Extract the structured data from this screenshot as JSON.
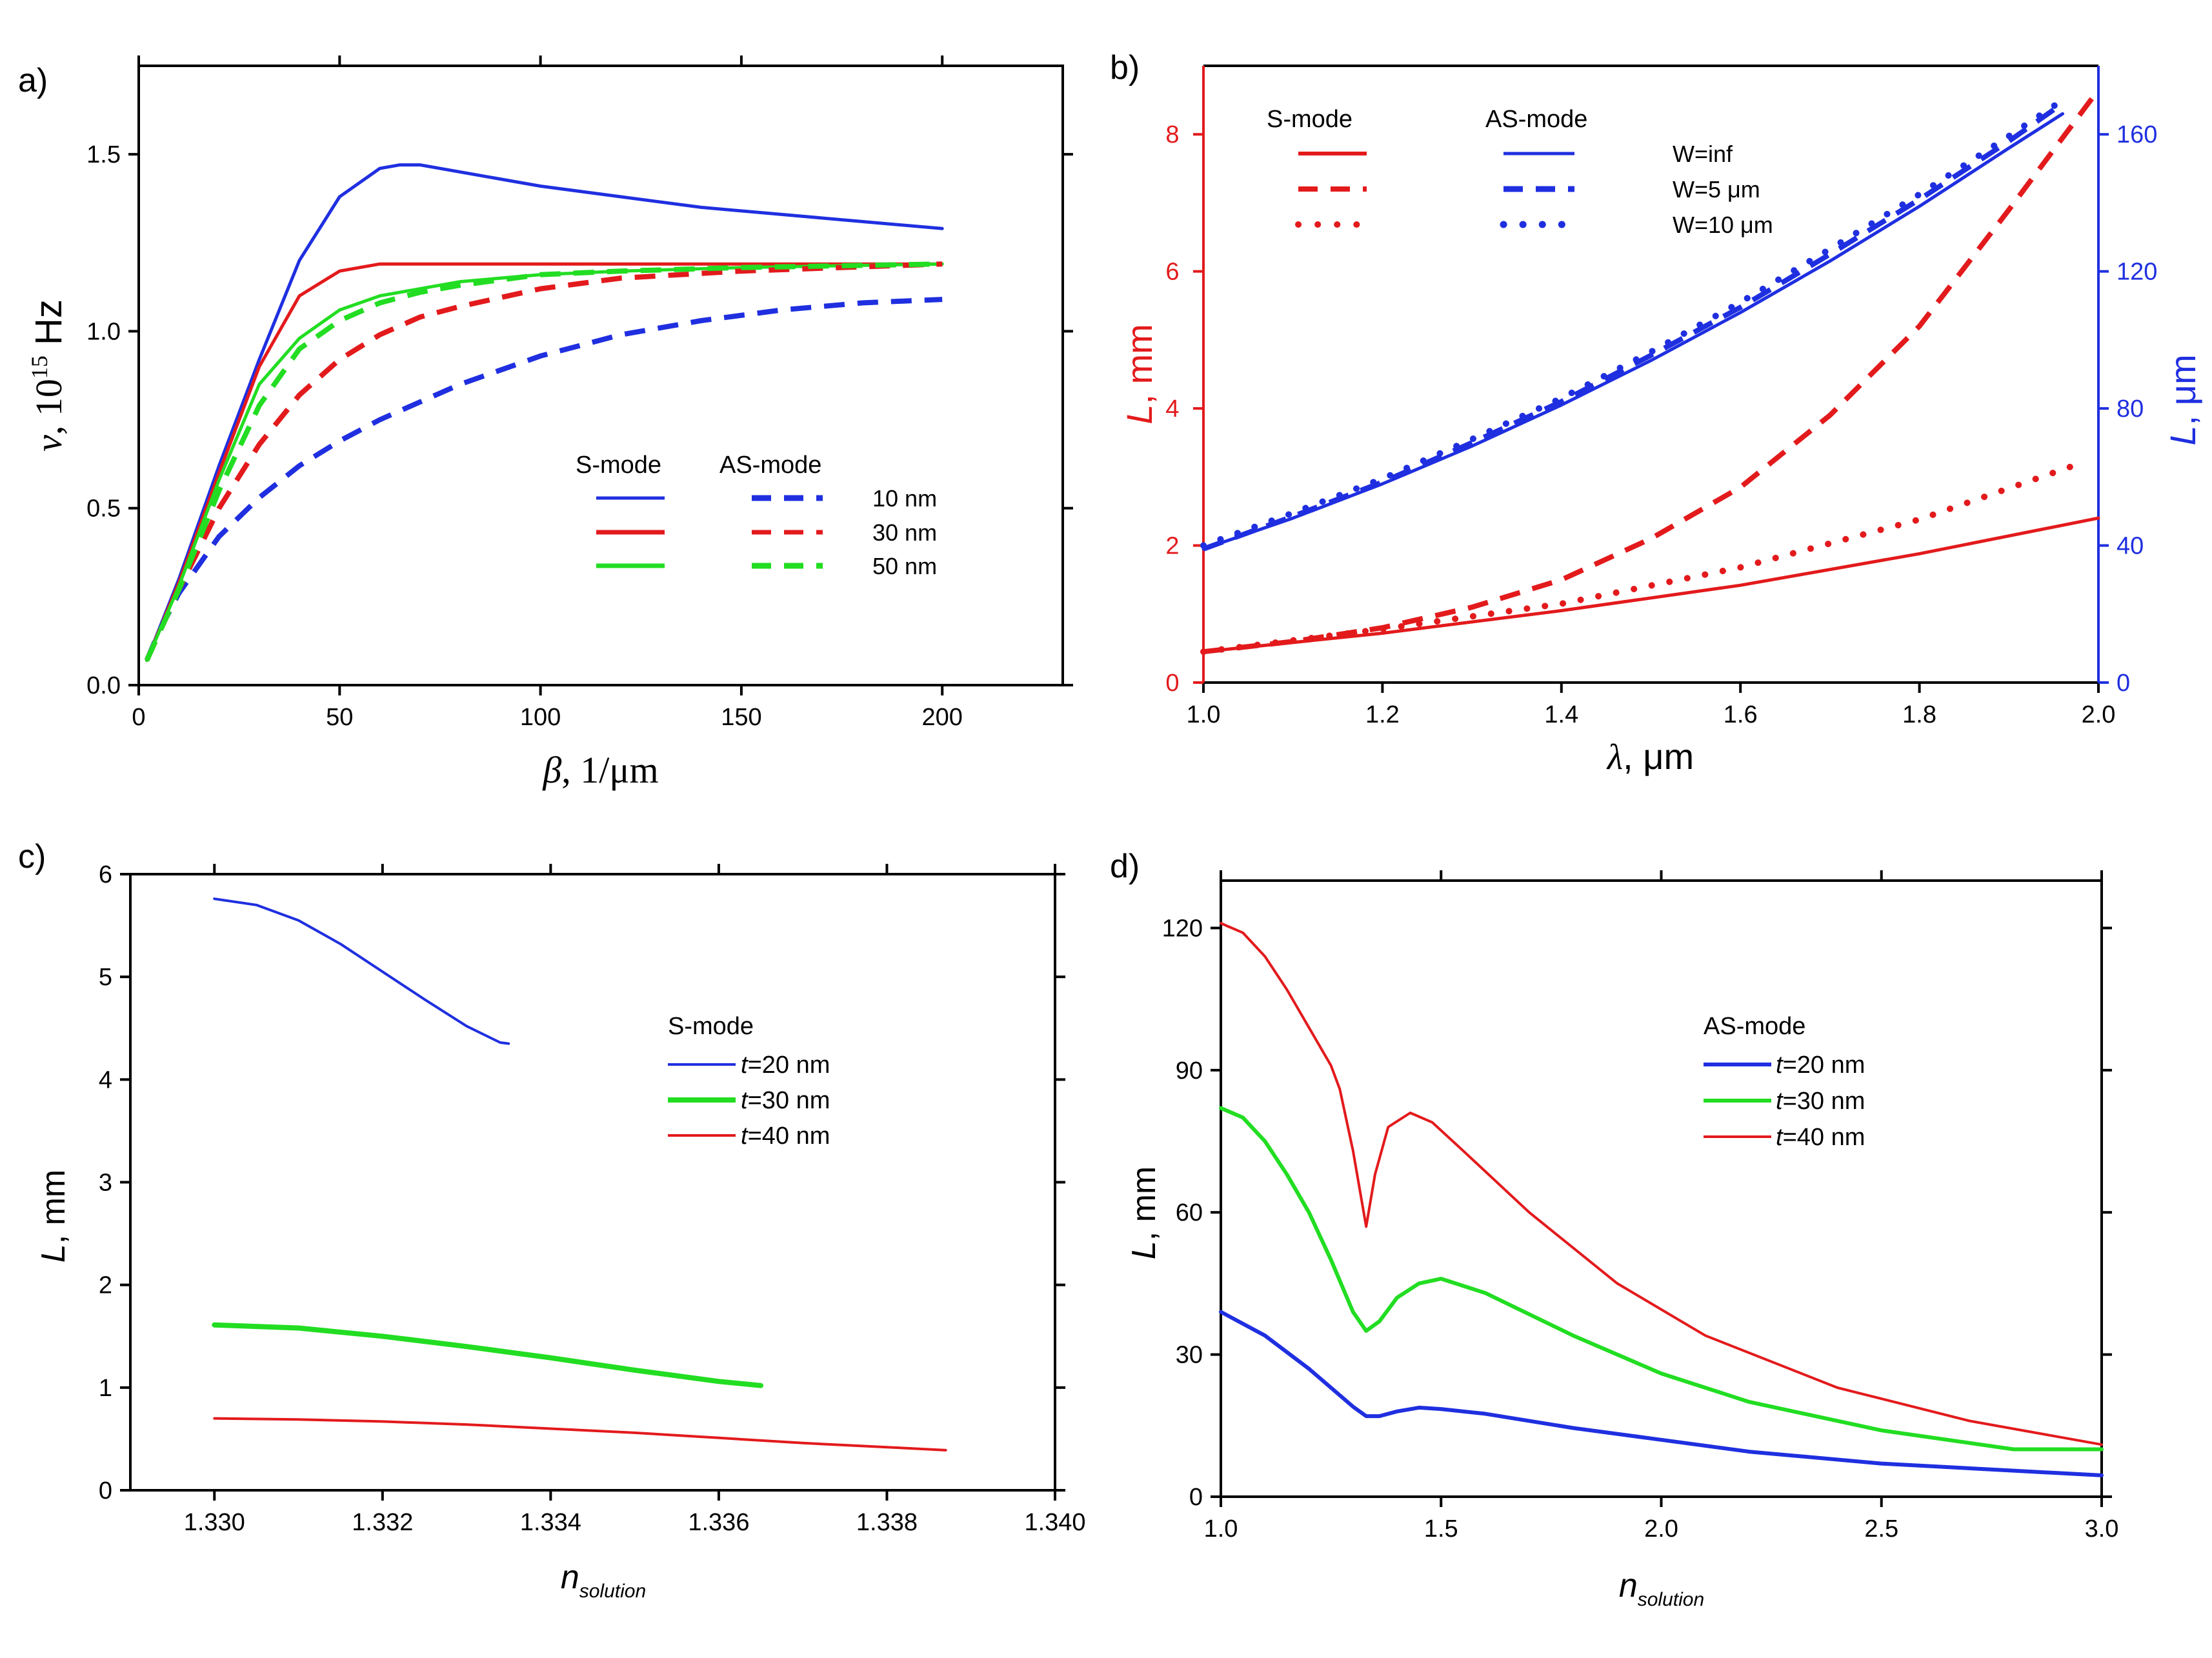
{
  "panels": {
    "a": {
      "label": "a)",
      "chart_data": {
        "type": "line",
        "xlabel_sym": "β",
        "xlabel_unit": ", 1/μm",
        "ylabel_sym": "ν",
        "ylabel_pre": ", 10",
        "ylabel_sup": "15",
        "ylabel_post": " Hz",
        "xlim": [
          0,
          230
        ],
        "ylim": [
          0,
          1.75
        ],
        "xticks": [
          0,
          50,
          100,
          150,
          200
        ],
        "xtick_labels": [
          "0",
          "50",
          "100",
          "150",
          "200"
        ],
        "yticks": [
          0,
          0.5,
          1.0,
          1.5
        ],
        "ytick_labels": [
          "0.0",
          "0.5",
          "1.0",
          "1.5"
        ],
        "series": [
          {
            "name": "S-mode 10 nm",
            "color": "#1f2fe0",
            "style": "solid",
            "x": [
              2,
              10,
              20,
              30,
              40,
              50,
              60,
              65,
              70,
              80,
              100,
              120,
              140,
              160,
              180,
              200
            ],
            "y": [
              0.07,
              0.3,
              0.62,
              0.92,
              1.2,
              1.38,
              1.46,
              1.47,
              1.47,
              1.45,
              1.41,
              1.38,
              1.35,
              1.33,
              1.31,
              1.29
            ]
          },
          {
            "name": "S-mode 30 nm",
            "color": "#e31a1c",
            "style": "solid",
            "x": [
              2,
              10,
              20,
              30,
              40,
              50,
              60,
              70,
              80,
              100,
              150,
              200
            ],
            "y": [
              0.07,
              0.29,
              0.6,
              0.9,
              1.1,
              1.17,
              1.19,
              1.19,
              1.19,
              1.19,
              1.19,
              1.19
            ]
          },
          {
            "name": "S-mode 50 nm",
            "color": "#22dd22",
            "style": "solid",
            "x": [
              2,
              10,
              20,
              30,
              40,
              50,
              60,
              70,
              80,
              100,
              120,
              150,
              200
            ],
            "y": [
              0.07,
              0.28,
              0.58,
              0.85,
              0.98,
              1.06,
              1.1,
              1.12,
              1.14,
              1.16,
              1.17,
              1.18,
              1.19
            ]
          },
          {
            "name": "AS-mode 10 nm",
            "color": "#1f2fe0",
            "style": "dash",
            "x": [
              2,
              5,
              10,
              20,
              30,
              40,
              50,
              60,
              70,
              80,
              100,
              120,
              140,
              160,
              180,
              200
            ],
            "y": [
              0.07,
              0.15,
              0.26,
              0.42,
              0.53,
              0.62,
              0.69,
              0.75,
              0.8,
              0.85,
              0.93,
              0.99,
              1.03,
              1.06,
              1.08,
              1.09
            ]
          },
          {
            "name": "AS-mode 30 nm",
            "color": "#e31a1c",
            "style": "dash",
            "x": [
              2,
              10,
              20,
              30,
              40,
              50,
              60,
              70,
              80,
              100,
              120,
              150,
              200
            ],
            "y": [
              0.07,
              0.27,
              0.5,
              0.68,
              0.82,
              0.92,
              0.99,
              1.04,
              1.07,
              1.12,
              1.15,
              1.17,
              1.19
            ]
          },
          {
            "name": "AS-mode 50 nm",
            "color": "#22dd22",
            "style": "dash",
            "x": [
              2,
              10,
              20,
              30,
              40,
              50,
              60,
              70,
              80,
              100,
              120,
              150,
              200
            ],
            "y": [
              0.07,
              0.27,
              0.55,
              0.79,
              0.95,
              1.03,
              1.08,
              1.11,
              1.13,
              1.16,
              1.17,
              1.18,
              1.19
            ]
          }
        ],
        "legend": {
          "position": "center-right",
          "col1_title": "S-mode",
          "col2_title": "AS-mode",
          "rows": [
            {
              "label": "10 nm",
              "color": "#1f2fe0"
            },
            {
              "label": "30 nm",
              "color": "#e31a1c"
            },
            {
              "label": "50 nm",
              "color": "#22dd22"
            }
          ]
        }
      }
    },
    "b": {
      "label": "b)",
      "chart_data": {
        "type": "line",
        "xlabel_sym": "λ",
        "xlabel_unit": ", μm",
        "ylabel_left_sym": "L",
        "ylabel_left_unit": ", mm",
        "ylabel_right_sym": "L",
        "ylabel_right_unit": ", μm",
        "xlim": [
          1.0,
          2.0
        ],
        "ylim_left": [
          0,
          9
        ],
        "ylim_right": [
          0,
          180
        ],
        "xticks": [
          1.0,
          1.2,
          1.4,
          1.6,
          1.8,
          2.0
        ],
        "xtick_labels": [
          "1.0",
          "1.2",
          "1.4",
          "1.6",
          "1.8",
          "2.0"
        ],
        "yticks_left": [
          0,
          2,
          4,
          6,
          8
        ],
        "ytick_labels_left": [
          "0",
          "2",
          "4",
          "6",
          "8"
        ],
        "yticks_right": [
          0,
          40,
          80,
          120,
          160
        ],
        "ytick_labels_right": [
          "0",
          "40",
          "80",
          "120",
          "160"
        ],
        "left_color": "#e31a1c",
        "right_color": "#1f2fe0",
        "series": [
          {
            "name": "S-mode W=inf",
            "axis": "left",
            "color": "#e31a1c",
            "style": "solid",
            "x": [
              1.0,
              1.2,
              1.4,
              1.6,
              1.8,
              2.0
            ],
            "y": [
              0.45,
              0.72,
              1.05,
              1.42,
              1.88,
              2.4
            ]
          },
          {
            "name": "S-mode W=5 μm",
            "axis": "left",
            "color": "#e31a1c",
            "style": "dash",
            "x": [
              1.0,
              1.1,
              1.2,
              1.3,
              1.4,
              1.5,
              1.6,
              1.7,
              1.8,
              1.9,
              2.0
            ],
            "y": [
              0.45,
              0.6,
              0.8,
              1.1,
              1.5,
              2.1,
              2.85,
              3.9,
              5.2,
              6.9,
              8.65
            ]
          },
          {
            "name": "S-mode W=10 μm",
            "axis": "left",
            "color": "#e31a1c",
            "style": "dot",
            "x": [
              1.0,
              1.2,
              1.4,
              1.6,
              1.8,
              1.98
            ],
            "y": [
              0.45,
              0.78,
              1.15,
              1.68,
              2.38,
              3.2
            ]
          },
          {
            "name": "AS-mode W=inf",
            "axis": "right",
            "color": "#1f2fe0",
            "style": "solid",
            "x": [
              1.0,
              1.1,
              1.2,
              1.3,
              1.4,
              1.5,
              1.6,
              1.7,
              1.8,
              1.9,
              1.96
            ],
            "y": [
              39,
              48,
              58,
              69,
              81,
              94,
              108,
              123,
              139,
              156,
              166
            ]
          },
          {
            "name": "AS-mode W=5 μm",
            "axis": "right",
            "color": "#1f2fe0",
            "style": "dash",
            "x": [
              1.0,
              1.1,
              1.2,
              1.3,
              1.4,
              1.5,
              1.6,
              1.7,
              1.8,
              1.9,
              1.96
            ],
            "y": [
              39,
              48.5,
              58.5,
              70,
              82,
              95.5,
              109.5,
              125,
              141,
              158,
              169
            ]
          },
          {
            "name": "AS-mode W=10 μm",
            "axis": "right",
            "color": "#1f2fe0",
            "style": "dot",
            "x": [
              1.0,
              1.1,
              1.2,
              1.3,
              1.4,
              1.5,
              1.6,
              1.7,
              1.8,
              1.9,
              1.96
            ],
            "y": [
              40,
              49.5,
              59.5,
              71,
              83,
              96.5,
              111,
              126.5,
              142.5,
              159.5,
              170
            ]
          }
        ],
        "legend": {
          "position": "top-left",
          "col1_title": "S-mode",
          "col2_title": "AS-mode",
          "rows": [
            {
              "label": "W=inf",
              "style": "solid"
            },
            {
              "label": "W=5 μm",
              "style": "dash"
            },
            {
              "label": "W=10 μm",
              "style": "dot"
            }
          ]
        }
      }
    },
    "c": {
      "label": "c)",
      "chart_data": {
        "type": "line",
        "xlabel_sym": "n",
        "xlabel_sub": "solution",
        "ylabel_sym": "L",
        "ylabel_unit": ", mm",
        "xlim": [
          1.329,
          1.34
        ],
        "ylim": [
          0,
          6
        ],
        "xticks": [
          1.33,
          1.332,
          1.334,
          1.336,
          1.338,
          1.34
        ],
        "xtick_labels": [
          "1.330",
          "1.332",
          "1.334",
          "1.336",
          "1.338",
          "1.340"
        ],
        "yticks": [
          0,
          1,
          2,
          3,
          4,
          5,
          6
        ],
        "ytick_labels": [
          "0",
          "1",
          "2",
          "3",
          "4",
          "5",
          "6"
        ],
        "series": [
          {
            "name": "t=20 nm",
            "color": "#1f2fe0",
            "width": "thin",
            "x": [
              1.33,
              1.3305,
              1.331,
              1.3315,
              1.332,
              1.3325,
              1.333,
              1.3334,
              1.3335
            ],
            "y": [
              5.76,
              5.7,
              5.55,
              5.32,
              5.05,
              4.78,
              4.52,
              4.36,
              4.35
            ]
          },
          {
            "name": "t=30 nm",
            "color": "#22dd22",
            "width": "thick",
            "x": [
              1.33,
              1.331,
              1.332,
              1.333,
              1.334,
              1.335,
              1.336,
              1.3365
            ],
            "y": [
              1.61,
              1.58,
              1.5,
              1.4,
              1.29,
              1.17,
              1.06,
              1.02
            ]
          },
          {
            "name": "t=40 nm",
            "color": "#e31a1c",
            "width": "thin",
            "x": [
              1.33,
              1.331,
              1.332,
              1.333,
              1.334,
              1.335,
              1.336,
              1.337,
              1.338,
              1.3387
            ],
            "y": [
              0.7,
              0.69,
              0.67,
              0.64,
              0.6,
              0.56,
              0.51,
              0.46,
              0.42,
              0.39
            ]
          }
        ],
        "legend": {
          "position": "center-right",
          "title": "S-mode",
          "rows": [
            {
              "italic": "t",
              "label": "=20 nm",
              "color": "#1f2fe0"
            },
            {
              "italic": "t",
              "label": "=30 nm",
              "color": "#22dd22"
            },
            {
              "italic": "t",
              "label": "=40 nm",
              "color": "#e31a1c"
            }
          ]
        }
      }
    },
    "d": {
      "label": "d)",
      "chart_data": {
        "type": "line",
        "xlabel_sym": "n",
        "xlabel_sub": "solution",
        "ylabel_sym": "L",
        "ylabel_unit": ", mm",
        "xlim": [
          1.0,
          3.0
        ],
        "ylim": [
          0,
          130
        ],
        "xticks": [
          1.0,
          1.5,
          2.0,
          2.5,
          3.0
        ],
        "xtick_labels": [
          "1.0",
          "1.5",
          "2.0",
          "2.5",
          "3.0"
        ],
        "yticks": [
          0,
          30,
          60,
          90,
          120
        ],
        "ytick_labels": [
          "0",
          "30",
          "60",
          "90",
          "120"
        ],
        "series": [
          {
            "name": "t=20 nm",
            "color": "#1f2fe0",
            "width": "thick",
            "x": [
              1.0,
              1.1,
              1.2,
              1.3,
              1.33,
              1.36,
              1.4,
              1.45,
              1.5,
              1.6,
              1.8,
              2.0,
              2.2,
              2.5,
              2.8,
              3.0
            ],
            "y": [
              39,
              34,
              27,
              19,
              17,
              17,
              18,
              18.8,
              18.5,
              17.5,
              14.5,
              12,
              9.5,
              7,
              5.5,
              4.5
            ]
          },
          {
            "name": "t=30 nm",
            "color": "#22dd22",
            "width": "thick",
            "x": [
              1.0,
              1.05,
              1.1,
              1.15,
              1.2,
              1.25,
              1.3,
              1.33,
              1.36,
              1.4,
              1.45,
              1.5,
              1.6,
              1.8,
              2.0,
              2.2,
              2.5,
              2.8,
              3.0
            ],
            "y": [
              82,
              80,
              75,
              68,
              60,
              50,
              39,
              35,
              37,
              42,
              45,
              46,
              43,
              34,
              26,
              20,
              14,
              10,
              10
            ]
          },
          {
            "name": "t=40 nm",
            "color": "#e31a1c",
            "width": "thin",
            "x": [
              1.0,
              1.05,
              1.1,
              1.15,
              1.2,
              1.25,
              1.27,
              1.3,
              1.33,
              1.35,
              1.38,
              1.43,
              1.48,
              1.55,
              1.7,
              1.9,
              2.1,
              2.4,
              2.7,
              3.0
            ],
            "y": [
              121,
              119,
              114,
              107,
              99,
              91,
              86,
              73,
              57,
              68,
              78,
              81,
              79,
              73,
              60,
              45,
              34,
              23,
              16,
              11
            ]
          }
        ],
        "legend": {
          "position": "center-right",
          "title": "AS-mode",
          "rows": [
            {
              "italic": "t",
              "label": "=20 nm",
              "color": "#1f2fe0"
            },
            {
              "italic": "t",
              "label": "=30 nm",
              "color": "#22dd22"
            },
            {
              "italic": "t",
              "label": "=40 nm",
              "color": "#e31a1c"
            }
          ]
        }
      }
    }
  }
}
